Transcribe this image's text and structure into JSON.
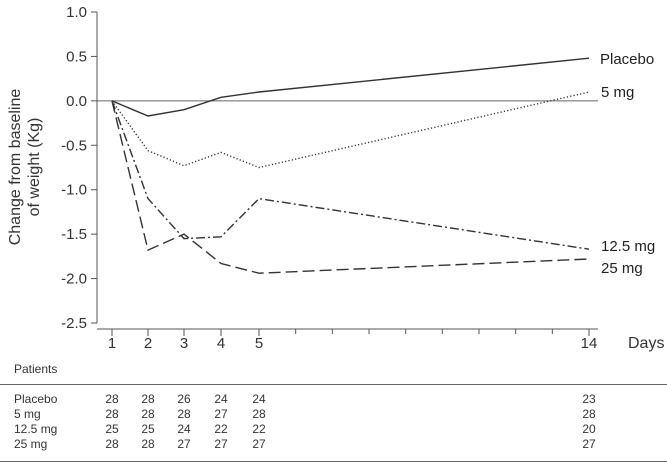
{
  "chart_data": {
    "type": "line",
    "title": "",
    "xlabel": "Days",
    "ylabel_lines": [
      "Change from baseline",
      "of weight (Kg)"
    ],
    "x": [
      1,
      2,
      3,
      4,
      5,
      14
    ],
    "xticks": [
      "1",
      "2",
      "3",
      "4",
      "5",
      "14"
    ],
    "ylim": [
      -2.5,
      1.0
    ],
    "yticks": [
      "1.0",
      "0.5",
      "0.0",
      "-0.5",
      "-1.0",
      "-1.5",
      "-2.0",
      "-2.5"
    ],
    "reference_line_y": 0,
    "grid": false,
    "legend": "direct labels at line ends",
    "series": [
      {
        "name": "Placebo",
        "style": "solid",
        "values": [
          0,
          -0.17,
          -0.1,
          0.04,
          0.1,
          0.48
        ]
      },
      {
        "name": "5 mg",
        "style": "dotted",
        "values": [
          0,
          -0.56,
          -0.73,
          -0.58,
          -0.75,
          0.1
        ]
      },
      {
        "name": "12.5 mg",
        "style": "dashdot",
        "values": [
          0,
          -1.1,
          -1.55,
          -1.53,
          -1.1,
          -1.67
        ]
      },
      {
        "name": "25 mg",
        "style": "dashed",
        "values": [
          0,
          -1.68,
          -1.5,
          -1.83,
          -1.94,
          -1.78
        ]
      }
    ]
  },
  "patients_table": {
    "header": "Patients",
    "rows": [
      {
        "name": "Placebo",
        "values": [
          "28",
          "28",
          "26",
          "24",
          "24",
          "23"
        ]
      },
      {
        "name": "5 mg",
        "values": [
          "28",
          "28",
          "28",
          "27",
          "28",
          "28"
        ]
      },
      {
        "name": "12.5 mg",
        "values": [
          "25",
          "25",
          "24",
          "22",
          "22",
          "20"
        ]
      },
      {
        "name": "25 mg",
        "values": [
          "28",
          "28",
          "27",
          "27",
          "27",
          "27"
        ]
      }
    ]
  }
}
